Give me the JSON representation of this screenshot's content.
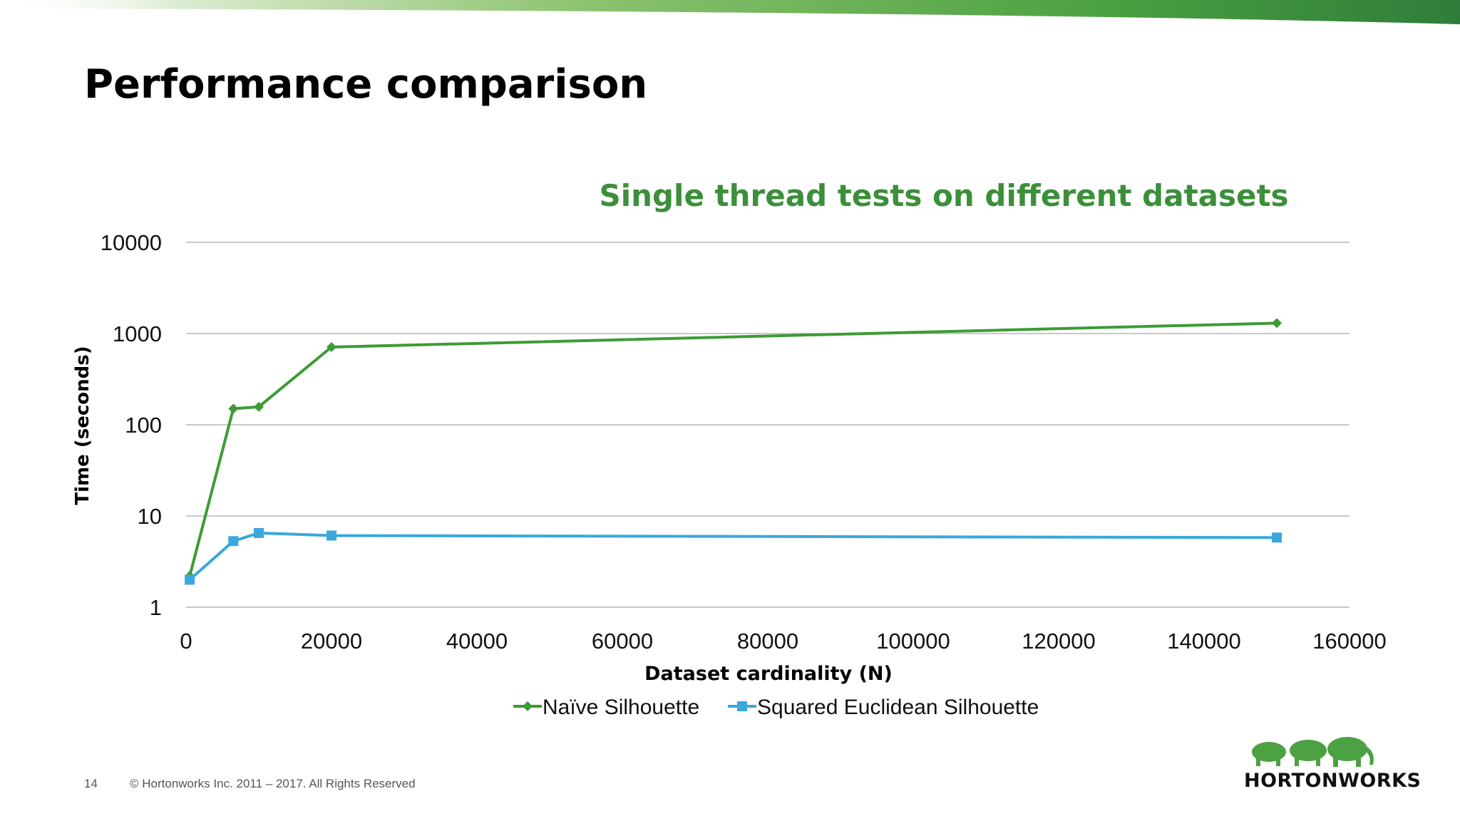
{
  "slide": {
    "title": "Performance comparison",
    "page_number": "14",
    "copyright": "© Hortonworks Inc. 2011 – 2017. All Rights Reserved",
    "logo_text": "HORTONWORKS",
    "logo_icon": "elephant-herd-logo",
    "accent_colors": [
      "#a8d08d",
      "#4ca142",
      "#2e7d32"
    ]
  },
  "chart_data": {
    "type": "line",
    "title": "Single thread tests on different datasets",
    "xlabel": "Dataset cardinality (N)",
    "ylabel": "Time (seconds)",
    "xlim": [
      0,
      160000
    ],
    "ylim": [
      1,
      10000
    ],
    "y_scale": "log",
    "x_ticks": [
      0,
      20000,
      40000,
      60000,
      80000,
      100000,
      120000,
      140000,
      160000
    ],
    "x_tick_labels": [
      "0",
      "20000",
      "40000",
      "60000",
      "80000",
      "100000",
      "120000",
      "140000",
      "160000"
    ],
    "y_ticks": [
      1,
      10,
      100,
      1000,
      10000
    ],
    "y_tick_labels": [
      "1",
      "10",
      "100",
      "1000",
      "10000"
    ],
    "grid": "horizontal",
    "legend_position": "bottom",
    "series": [
      {
        "name": "Naïve Silhouette",
        "color": "#3d9b35",
        "marker": "diamond",
        "x": [
          500,
          6500,
          10000,
          20000,
          150000
        ],
        "y": [
          2.2,
          150,
          157,
          710,
          1300
        ]
      },
      {
        "name": "Squared Euclidean Silhouette",
        "color": "#3aa7dd",
        "marker": "square",
        "x": [
          500,
          6500,
          10000,
          20000,
          150000
        ],
        "y": [
          2.0,
          5.3,
          6.5,
          6.1,
          5.8
        ]
      }
    ]
  }
}
